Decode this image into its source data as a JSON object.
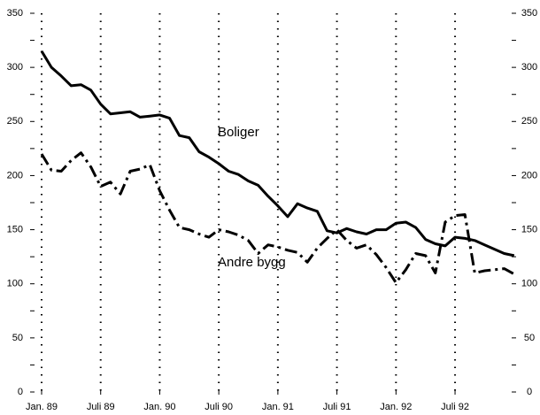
{
  "chart_data": {
    "type": "line",
    "categories": [
      "Jan. 89",
      null,
      null,
      null,
      null,
      null,
      "Juli 89",
      null,
      null,
      null,
      null,
      null,
      "Jan. 90",
      null,
      null,
      null,
      null,
      null,
      "Juli 90",
      null,
      null,
      null,
      null,
      null,
      "Jan. 91",
      null,
      null,
      null,
      null,
      null,
      "Juli 91",
      null,
      null,
      null,
      null,
      null,
      "Jan. 92",
      null,
      null,
      null,
      null,
      null,
      "Juli 92",
      null,
      null,
      null,
      null,
      null,
      null
    ],
    "series": [
      {
        "name": "Boliger",
        "color": "#000000",
        "dash": "solid",
        "values": [
          315,
          300,
          292,
          283,
          284,
          279,
          266,
          257,
          258,
          259,
          254,
          255,
          256,
          253,
          237,
          235,
          222,
          217,
          211,
          204,
          201,
          195,
          191,
          181,
          172,
          162,
          174,
          170,
          167,
          149,
          147,
          151,
          148,
          146,
          150,
          150,
          156,
          157,
          152,
          141,
          137,
          135,
          143,
          142,
          140,
          136,
          132,
          128,
          126
        ]
      },
      {
        "name": "Andre bygg",
        "color": "#000000",
        "dash": "dashdot",
        "values": [
          220,
          205,
          204,
          214,
          221,
          208,
          190,
          194,
          183,
          204,
          206,
          210,
          186,
          168,
          152,
          150,
          146,
          143,
          150,
          148,
          145,
          140,
          128,
          136,
          134,
          131,
          129,
          120,
          133,
          142,
          150,
          140,
          133,
          136,
          127,
          115,
          101,
          113,
          128,
          126,
          110,
          157,
          163,
          164,
          110,
          112,
          113,
          114,
          109
        ]
      }
    ],
    "ylim": [
      0,
      350
    ],
    "yticks": [
      0,
      50,
      100,
      150,
      200,
      250,
      300,
      350
    ],
    "y_minor_ticks": [
      25,
      75,
      125,
      175,
      225,
      275,
      325
    ],
    "right_axis": true,
    "vertical_grid": "dotted"
  }
}
